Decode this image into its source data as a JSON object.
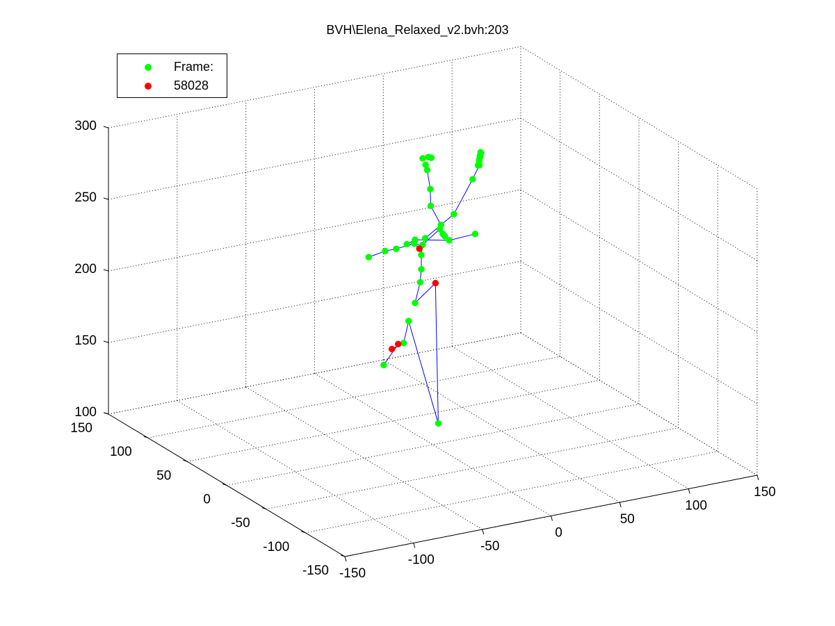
{
  "window": {
    "title": "BVH\\Elena_Relaxed_v2.bvh:203"
  },
  "legend": {
    "items": [
      {
        "label": "Frame:",
        "color": "#00ff00"
      },
      {
        "label": "58028",
        "color": "#ff0000"
      }
    ],
    "placement": "top-left"
  },
  "chart_data": {
    "type": "scatter",
    "title": "BVH\\Elena_Relaxed_v2.bvh:203",
    "xlabel": "",
    "ylabel": "",
    "zlabel": "",
    "projection": "3d",
    "grid": true,
    "line_color": "#0000ff",
    "xlim": [
      -150,
      150
    ],
    "ylim": [
      -150,
      150
    ],
    "zlim": [
      100,
      300
    ],
    "x_ticks": [
      "-150",
      "-100",
      "-50",
      "0",
      "50",
      "100",
      "150"
    ],
    "y_ticks": [
      "-150",
      "-100",
      "-50",
      "0",
      "50",
      "100",
      "150"
    ],
    "z_ticks": [
      "100",
      "150",
      "200",
      "250",
      "300"
    ],
    "series": [
      {
        "name": "Frame:",
        "color": "#00ff00",
        "points": [
          [
            -30,
            10,
            158
          ],
          [
            -12,
            16,
            168
          ],
          [
            -5,
            22,
            180
          ],
          [
            2,
            26,
            190
          ],
          [
            8,
            30,
            202
          ],
          [
            10,
            32,
            210
          ],
          [
            10,
            32,
            220
          ],
          [
            12,
            34,
            226
          ],
          [
            6,
            34,
            228
          ],
          [
            -6,
            36,
            226
          ],
          [
            -14,
            36,
            226
          ],
          [
            -26,
            36,
            224
          ],
          [
            4,
            40,
            226
          ],
          [
            10,
            40,
            228
          ],
          [
            36,
            42,
            222
          ],
          [
            56,
            44,
            222
          ],
          [
            28,
            40,
            232
          ],
          [
            30,
            42,
            234
          ],
          [
            28,
            36,
            230
          ],
          [
            27,
            32,
            230
          ],
          [
            26,
            48,
            246
          ],
          [
            28,
            52,
            256
          ],
          [
            28,
            56,
            268
          ],
          [
            28,
            58,
            271
          ],
          [
            27,
            60,
            275
          ],
          [
            30,
            58,
            276
          ],
          [
            31,
            56,
            276
          ],
          [
            12,
            14,
            108
          ],
          [
            30,
            62,
            218
          ],
          [
            52,
            64,
            230
          ],
          [
            68,
            68,
            250
          ],
          [
            74,
            70,
            258
          ],
          [
            74,
            70,
            262
          ],
          [
            75,
            71,
            264
          ],
          [
            76,
            72,
            266
          ],
          [
            77,
            73,
            265
          ],
          [
            77,
            74,
            262
          ],
          [
            75,
            72,
            260
          ],
          [
            73,
            70,
            258
          ]
        ]
      },
      {
        "name": "58028",
        "color": "#ff0000",
        "points": [
          [
            12,
            38,
            222
          ],
          [
            26,
            42,
            194
          ],
          [
            -24,
            10,
            168
          ],
          [
            -16,
            16,
            168
          ]
        ]
      }
    ],
    "bones": [
      [
        [
          -30,
          10,
          158
        ],
        [
          -16,
          16,
          168
        ]
      ],
      [
        [
          -16,
          16,
          168
        ],
        [
          -12,
          16,
          168
        ]
      ],
      [
        [
          -12,
          16,
          168
        ],
        [
          -24,
          10,
          168
        ]
      ],
      [
        [
          -12,
          16,
          168
        ],
        [
          -5,
          22,
          180
        ]
      ],
      [
        [
          -5,
          22,
          180
        ],
        [
          12,
          14,
          108
        ]
      ],
      [
        [
          12,
          14,
          108
        ],
        [
          26,
          42,
          194
        ]
      ],
      [
        [
          26,
          42,
          194
        ],
        [
          2,
          26,
          190
        ]
      ],
      [
        [
          2,
          26,
          190
        ],
        [
          8,
          30,
          202
        ]
      ],
      [
        [
          8,
          30,
          202
        ],
        [
          10,
          32,
          210
        ]
      ],
      [
        [
          10,
          32,
          210
        ],
        [
          10,
          32,
          220
        ]
      ],
      [
        [
          10,
          32,
          220
        ],
        [
          12,
          34,
          226
        ]
      ],
      [
        [
          12,
          34,
          226
        ],
        [
          12,
          38,
          222
        ]
      ],
      [
        [
          12,
          38,
          222
        ],
        [
          6,
          34,
          228
        ]
      ],
      [
        [
          6,
          34,
          228
        ],
        [
          -6,
          36,
          226
        ]
      ],
      [
        [
          -6,
          36,
          226
        ],
        [
          -14,
          36,
          226
        ]
      ],
      [
        [
          -14,
          36,
          226
        ],
        [
          -26,
          36,
          224
        ]
      ],
      [
        [
          12,
          34,
          226
        ],
        [
          4,
          40,
          226
        ]
      ],
      [
        [
          4,
          40,
          226
        ],
        [
          10,
          40,
          228
        ]
      ],
      [
        [
          10,
          40,
          228
        ],
        [
          36,
          42,
          222
        ]
      ],
      [
        [
          36,
          42,
          222
        ],
        [
          56,
          44,
          222
        ]
      ],
      [
        [
          12,
          34,
          226
        ],
        [
          28,
          40,
          232
        ]
      ],
      [
        [
          28,
          40,
          232
        ],
        [
          30,
          42,
          234
        ]
      ],
      [
        [
          30,
          42,
          234
        ],
        [
          26,
          48,
          246
        ]
      ],
      [
        [
          26,
          48,
          246
        ],
        [
          28,
          52,
          256
        ]
      ],
      [
        [
          28,
          52,
          256
        ],
        [
          28,
          56,
          268
        ]
      ],
      [
        [
          28,
          56,
          268
        ],
        [
          28,
          58,
          271
        ]
      ],
      [
        [
          12,
          34,
          226
        ],
        [
          30,
          62,
          218
        ]
      ],
      [
        [
          30,
          62,
          218
        ],
        [
          52,
          64,
          230
        ]
      ],
      [
        [
          52,
          64,
          230
        ],
        [
          68,
          68,
          250
        ]
      ],
      [
        [
          68,
          68,
          250
        ],
        [
          74,
          70,
          258
        ]
      ],
      [
        [
          74,
          70,
          258
        ],
        [
          76,
          72,
          266
        ]
      ]
    ]
  }
}
